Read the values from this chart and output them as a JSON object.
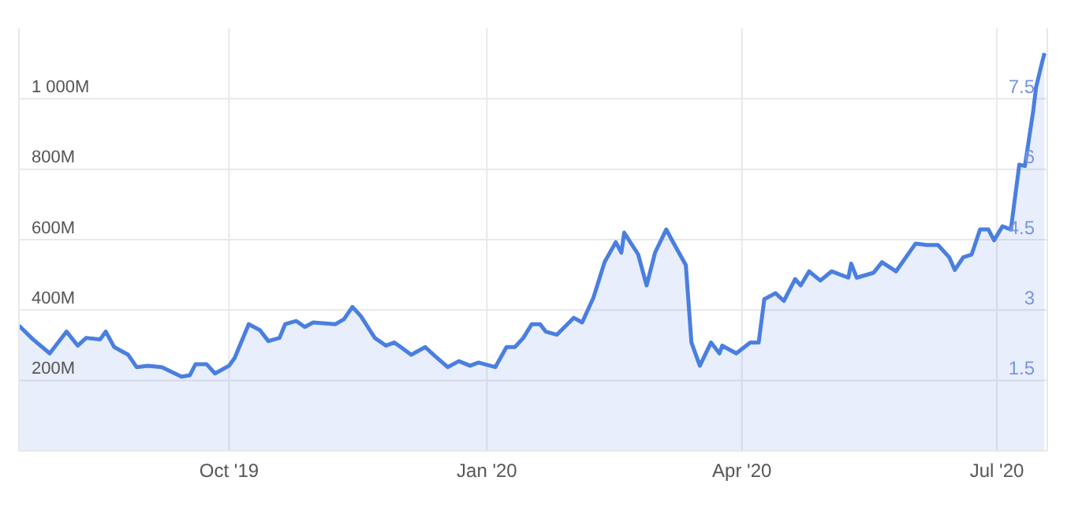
{
  "chart_data": {
    "type": "area",
    "x": [
      "2019-07-18",
      "2019-07-23",
      "2019-07-29",
      "2019-08-04",
      "2019-08-08",
      "2019-08-11",
      "2019-08-16",
      "2019-08-18",
      "2019-08-21",
      "2019-08-26",
      "2019-08-29",
      "2019-09-02",
      "2019-09-07",
      "2019-09-14",
      "2019-09-17",
      "2019-09-19",
      "2019-09-23",
      "2019-09-26",
      "2019-10-01",
      "2019-10-03",
      "2019-10-08",
      "2019-10-12",
      "2019-10-15",
      "2019-10-19",
      "2019-10-21",
      "2019-10-25",
      "2019-10-28",
      "2019-10-31",
      "2019-11-08",
      "2019-11-11",
      "2019-11-14",
      "2019-11-17",
      "2019-11-22",
      "2019-11-26",
      "2019-11-29",
      "2019-12-05",
      "2019-12-10",
      "2019-12-13",
      "2019-12-18",
      "2019-12-22",
      "2019-12-26",
      "2019-12-29",
      "2020-01-04",
      "2020-01-08",
      "2020-01-11",
      "2020-01-14",
      "2020-01-17",
      "2020-01-20",
      "2020-01-22",
      "2020-01-26",
      "2020-02-01",
      "2020-02-04",
      "2020-02-08",
      "2020-02-12",
      "2020-02-16",
      "2020-02-18",
      "2020-02-19",
      "2020-02-24",
      "2020-02-27",
      "2020-03-01",
      "2020-03-05",
      "2020-03-08",
      "2020-03-12",
      "2020-03-14",
      "2020-03-17",
      "2020-03-21",
      "2020-03-24",
      "2020-03-25",
      "2020-03-30",
      "2020-04-04",
      "2020-04-07",
      "2020-04-09",
      "2020-04-13",
      "2020-04-16",
      "2020-04-20",
      "2020-04-22",
      "2020-04-25",
      "2020-04-29",
      "2020-05-03",
      "2020-05-09",
      "2020-05-10",
      "2020-05-12",
      "2020-05-18",
      "2020-05-21",
      "2020-05-26",
      "2020-06-02",
      "2020-06-06",
      "2020-06-10",
      "2020-06-14",
      "2020-06-16",
      "2020-06-19",
      "2020-06-22",
      "2020-06-25",
      "2020-06-28",
      "2020-06-30",
      "2020-07-03",
      "2020-07-06",
      "2020-07-09",
      "2020-07-11",
      "2020-07-14",
      "2020-07-15",
      "2020-07-17",
      "2020-07-18"
    ],
    "series": [
      {
        "color": "#4a7fe0",
        "values": [
          356,
          317,
          277,
          339,
          299,
          321,
          317,
          339,
          295,
          273,
          238,
          242,
          238,
          211,
          215,
          246,
          246,
          220,
          242,
          264,
          360,
          343,
          312,
          321,
          360,
          369,
          352,
          365,
          360,
          374,
          409,
          383,
          321,
          299,
          308,
          273,
          295,
          273,
          238,
          255,
          242,
          251,
          238,
          295,
          295,
          321,
          360,
          360,
          339,
          330,
          378,
          365,
          435,
          536,
          593,
          563,
          620,
          558,
          470,
          563,
          629,
          585,
          528,
          308,
          242,
          308,
          277,
          299,
          277,
          308,
          308,
          431,
          448,
          426,
          488,
          470,
          510,
          484,
          510,
          492,
          532,
          492,
          506,
          536,
          510,
          589,
          585,
          585,
          550,
          514,
          550,
          558,
          629,
          629,
          598,
          638,
          629,
          813,
          809,
          967,
          1033,
          1099,
          1130
        ]
      }
    ],
    "xlim": [
      "2019-07-18",
      "2020-07-19"
    ],
    "xticks": [
      {
        "value": "2019-10-01",
        "label": "Oct '19"
      },
      {
        "value": "2020-01-01",
        "label": "Jan '20"
      },
      {
        "value": "2020-04-01",
        "label": "Apr '20"
      },
      {
        "value": "2020-07-01",
        "label": "Jul '20"
      }
    ],
    "ylim": [
      0,
      1200
    ],
    "yticks": [
      {
        "value": 200,
        "label": "200M"
      },
      {
        "value": 400,
        "label": "400M"
      },
      {
        "value": 600,
        "label": "600M"
      },
      {
        "value": 800,
        "label": "800M"
      },
      {
        "value": 1000,
        "label": "1 000M"
      }
    ],
    "y2lim": [
      0,
      9
    ],
    "y2ticks": [
      1.5,
      3,
      4.5,
      6,
      7.5
    ],
    "grid": true
  }
}
